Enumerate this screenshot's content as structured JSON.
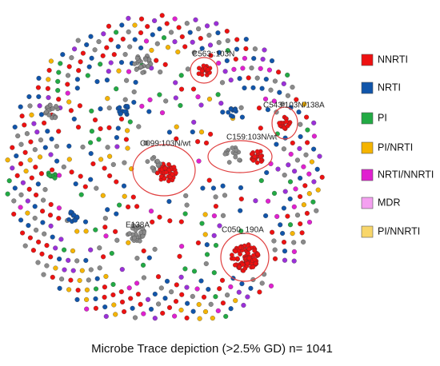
{
  "clusters": [
    {
      "label": "C563::103N"
    },
    {
      "label": "C543:103N/138A"
    },
    {
      "label": "C159:103N/wt"
    },
    {
      "label": "C099:103N/wt"
    },
    {
      "label": "E138A"
    },
    {
      "label": "C050_190A"
    }
  ],
  "legend": [
    {
      "label": "NNRTI",
      "color": "#ee1111"
    },
    {
      "label": "NRTI",
      "color": "#1155aa"
    },
    {
      "label": "PI",
      "color": "#22aa44"
    },
    {
      "label": "PI/NRTI",
      "color": "#f5b400"
    },
    {
      "label": "NRTI/NNRTI",
      "color": "#e020d0"
    },
    {
      "label": "MDR",
      "color": "#f4a0f0"
    },
    {
      "label": "PI/NNRTI",
      "color": "#f8d66a"
    }
  ],
  "caption": "Microbe Trace depiction  (>2.5% GD) n= 1041"
}
